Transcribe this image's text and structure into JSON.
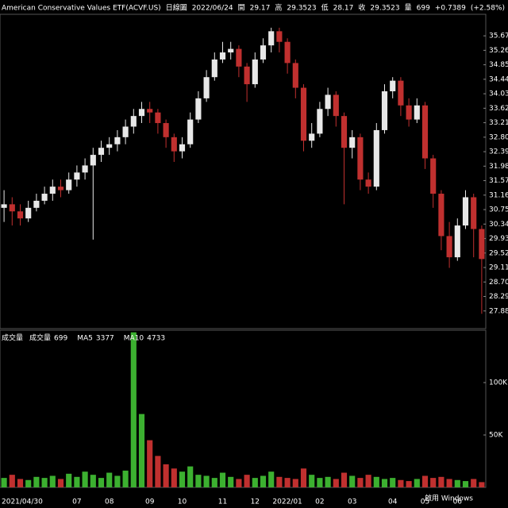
{
  "chart_data": {
    "type": "candlestick",
    "title": "American Conservative Values ETF(ACVF.US)",
    "period": "日線圖",
    "date": "2022/06/24",
    "quote": [
      {
        "label": "開",
        "value": 29.17
      },
      {
        "label": "高",
        "value": 29.3523
      },
      {
        "label": "低",
        "value": 28.17
      },
      {
        "label": "收",
        "value": 29.3523
      },
      {
        "label": "量",
        "value": 699
      }
    ],
    "change": "+0.7389",
    "change_pct": "(+2.58%)",
    "up_color": "#e8e8e8",
    "down_color": "#c0302f",
    "categories": [
      "2021/04/30",
      null,
      null,
      null,
      null,
      null,
      null,
      null,
      null,
      "07",
      null,
      null,
      null,
      "08",
      null,
      null,
      null,
      null,
      "09",
      null,
      null,
      null,
      "10",
      null,
      null,
      null,
      null,
      "11",
      null,
      null,
      null,
      "12",
      null,
      null,
      null,
      "2022/01",
      null,
      null,
      null,
      "02",
      null,
      null,
      null,
      "03",
      null,
      null,
      null,
      null,
      "04",
      null,
      null,
      null,
      "05",
      null,
      null,
      null,
      "06",
      null,
      null,
      null
    ],
    "open": [
      30.8,
      30.9,
      30.7,
      30.5,
      30.8,
      31.0,
      31.2,
      31.4,
      31.3,
      31.6,
      31.8,
      32.0,
      32.3,
      32.5,
      32.6,
      32.8,
      33.1,
      33.4,
      33.6,
      33.5,
      33.2,
      32.8,
      32.4,
      32.6,
      33.3,
      33.9,
      34.5,
      35.0,
      35.2,
      35.3,
      34.8,
      34.3,
      35.0,
      35.4,
      35.8,
      35.5,
      34.9,
      34.2,
      32.7,
      32.9,
      33.6,
      34.0,
      33.4,
      32.5,
      32.8,
      31.6,
      31.4,
      33.0,
      34.1,
      34.4,
      33.7,
      33.3,
      33.7,
      32.2,
      31.2,
      30.0,
      29.4,
      30.3,
      31.1,
      30.2
    ],
    "high": [
      31.3,
      31.1,
      30.9,
      31.0,
      31.2,
      31.4,
      31.6,
      31.6,
      31.8,
      32.0,
      32.2,
      32.5,
      32.7,
      32.8,
      33.0,
      33.3,
      33.6,
      33.8,
      33.8,
      33.6,
      33.3,
      32.9,
      32.8,
      33.5,
      34.1,
      34.7,
      35.2,
      35.5,
      35.5,
      35.4,
      34.9,
      35.2,
      35.6,
      35.9,
      35.9,
      35.6,
      35.0,
      34.3,
      33.2,
      33.8,
      34.2,
      34.1,
      33.5,
      33.0,
      32.9,
      31.8,
      33.2,
      34.3,
      34.5,
      34.5,
      33.9,
      33.9,
      33.8,
      32.3,
      31.3,
      30.4,
      30.5,
      31.3,
      31.2,
      30.3
    ],
    "low": [
      30.4,
      30.3,
      30.3,
      30.4,
      30.7,
      30.9,
      31.0,
      31.1,
      31.2,
      31.4,
      31.6,
      29.9,
      32.1,
      32.3,
      32.4,
      32.6,
      32.9,
      33.2,
      33.2,
      32.9,
      32.5,
      32.1,
      32.2,
      32.5,
      33.2,
      33.8,
      34.4,
      34.9,
      35.0,
      34.5,
      33.8,
      34.2,
      34.9,
      35.2,
      35.2,
      34.6,
      33.9,
      32.4,
      32.5,
      32.8,
      33.4,
      33.1,
      30.9,
      32.2,
      31.3,
      31.2,
      31.3,
      32.9,
      33.9,
      33.4,
      33.1,
      33.2,
      31.9,
      30.8,
      29.6,
      29.1,
      29.3,
      30.2,
      29.4,
      27.8
    ],
    "close": [
      30.9,
      30.7,
      30.5,
      30.8,
      31.0,
      31.2,
      31.4,
      31.3,
      31.6,
      31.8,
      32.0,
      32.3,
      32.5,
      32.6,
      32.8,
      33.1,
      33.4,
      33.6,
      33.5,
      33.2,
      32.8,
      32.4,
      32.6,
      33.3,
      33.9,
      34.5,
      35.0,
      35.2,
      35.3,
      34.8,
      34.3,
      35.0,
      35.4,
      35.8,
      35.5,
      34.9,
      34.2,
      32.7,
      32.9,
      33.6,
      34.0,
      33.4,
      32.5,
      32.8,
      31.6,
      31.4,
      33.0,
      34.1,
      34.4,
      33.7,
      33.3,
      33.7,
      32.2,
      31.2,
      30.0,
      29.4,
      30.3,
      31.1,
      30.2,
      29.35
    ],
    "ylim": [
      27.38,
      36.28
    ],
    "yticks": [
      {
        "value": 35.67,
        "label": "35.67"
      },
      {
        "value": 35.26,
        "label": "35.26"
      },
      {
        "value": 34.85,
        "label": "34.85"
      },
      {
        "value": 34.44,
        "label": "34.44"
      },
      {
        "value": 34.03,
        "label": "34.03"
      },
      {
        "value": 33.62,
        "label": "33.62"
      },
      {
        "value": 33.21,
        "label": "33.21"
      },
      {
        "value": 32.8,
        "label": "32.80"
      },
      {
        "value": 32.39,
        "label": "32.39"
      },
      {
        "value": 31.98,
        "label": "31.98"
      },
      {
        "value": 31.57,
        "label": "31.57"
      },
      {
        "value": 31.16,
        "label": "31.16"
      },
      {
        "value": 30.75,
        "label": "30.75"
      },
      {
        "value": 30.34,
        "label": "30.34"
      },
      {
        "value": 29.93,
        "label": "29.93"
      },
      {
        "value": 29.52,
        "label": "29.52"
      },
      {
        "value": 29.11,
        "label": "29.11"
      },
      {
        "value": 28.7,
        "label": "28.70"
      },
      {
        "value": 28.29,
        "label": "28.29"
      },
      {
        "value": 27.88,
        "label": "27.88"
      }
    ],
    "volume_title": "成交量",
    "volume_legend": [
      {
        "label": "成交量",
        "value": 699,
        "color": "#ffffff"
      },
      {
        "label": "MA5",
        "value": 3377,
        "color": "#ff5050"
      },
      {
        "label": "MA10",
        "value": 4733,
        "color": "#ffff40"
      }
    ],
    "volume": [
      9000,
      12000,
      8000,
      7000,
      10000,
      9000,
      11000,
      8000,
      13000,
      10000,
      15000,
      12000,
      9000,
      14000,
      11000,
      16000,
      148000,
      70000,
      45000,
      30000,
      22000,
      18000,
      15000,
      20000,
      12000,
      11000,
      9000,
      14000,
      10000,
      8000,
      12000,
      9000,
      11000,
      15000,
      10000,
      9000,
      8000,
      18000,
      12000,
      9000,
      10000,
      8000,
      14000,
      11000,
      9000,
      12000,
      10000,
      8000,
      9000,
      7000,
      6000,
      8000,
      11000,
      9000,
      10000,
      8000,
      7000,
      6000,
      8000,
      5000
    ],
    "volume_ylim": [
      0,
      150000
    ],
    "volume_yticks": [
      {
        "value": 100000,
        "label": "100K"
      },
      {
        "value": 50000,
        "label": "50K"
      }
    ],
    "watermark": "啟用 Windows"
  }
}
